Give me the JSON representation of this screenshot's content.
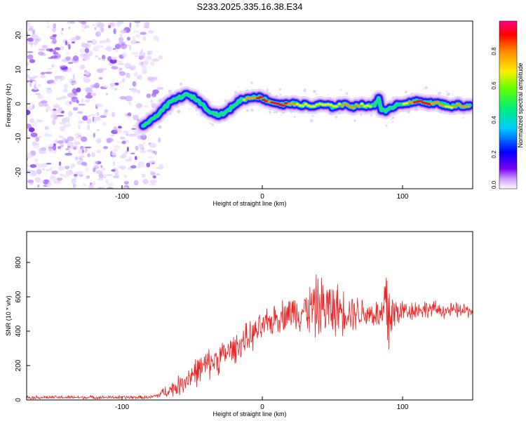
{
  "title": "S233.2025.335.16.38.E34",
  "chart_data": [
    {
      "type": "heatmap",
      "xlabel": "Height of straight line (km)",
      "ylabel": "Frequency (Hz)",
      "xlim": [
        -168,
        150
      ],
      "ylim": [
        -25,
        25
      ],
      "xticks": [
        -100,
        0,
        100
      ],
      "xtick_labels": [
        "-100",
        "0",
        "100"
      ],
      "yticks": [
        -20,
        -10,
        0,
        10,
        20
      ],
      "ytick_labels": [
        "-20",
        "-10",
        "0",
        "10",
        "20"
      ],
      "colorbar": {
        "label": "Normalized spectral amplitude",
        "range": [
          0,
          1
        ],
        "ticks": [
          0,
          0.2,
          0.4,
          0.6,
          0.8
        ],
        "tick_labels": [
          "0.0",
          "0.2",
          "0.4",
          "0.6",
          "0.8"
        ],
        "colors": [
          "#ffffff",
          "#cc99ff",
          "#7700ee",
          "#0000ff",
          "#00ccff",
          "#00ee77",
          "#66ff00",
          "#ffee00",
          "#ff8800",
          "#ff0000",
          "#ff0088"
        ]
      },
      "noise_region_x": [
        -168,
        -78
      ],
      "ridge": {
        "x": [
          -85,
          -80,
          -75,
          -70,
          -65,
          -60,
          -55,
          -50,
          -45,
          -40,
          -35,
          -30,
          -25,
          -20,
          -15,
          -10,
          -5,
          0,
          5,
          10,
          15,
          20,
          25,
          30,
          35,
          40,
          45,
          50,
          55,
          60,
          65,
          70,
          75,
          80,
          83,
          85,
          88,
          90,
          95,
          100,
          105,
          110,
          115,
          120,
          125,
          130,
          135,
          140,
          145,
          148
        ],
        "freq": [
          -6,
          -5,
          -3,
          -1,
          1,
          2,
          3,
          2.5,
          1,
          -1,
          -2.5,
          -3,
          -2,
          0,
          1.5,
          2,
          2.5,
          2,
          1,
          0.5,
          0,
          0.5,
          0,
          0,
          -0.5,
          0,
          0,
          -0.5,
          0,
          0,
          -0.5,
          0,
          -0.5,
          0,
          2,
          -1.5,
          -2,
          -1.5,
          0,
          0.5,
          0.5,
          1,
          1,
          0.5,
          0.5,
          0,
          -0.5,
          0,
          -0.5,
          0
        ],
        "amplitude": [
          0.3,
          0.35,
          0.4,
          0.45,
          0.5,
          0.5,
          0.55,
          0.5,
          0.5,
          0.45,
          0.5,
          0.45,
          0.5,
          0.55,
          0.6,
          0.75,
          0.8,
          0.85,
          0.8,
          0.9,
          0.85,
          0.75,
          0.7,
          0.7,
          0.7,
          0.65,
          0.7,
          0.7,
          0.7,
          0.75,
          0.8,
          0.7,
          0.65,
          0.55,
          0.5,
          0.4,
          0.4,
          0.45,
          0.55,
          0.6,
          0.75,
          0.85,
          0.85,
          0.8,
          0.75,
          0.7,
          0.7,
          0.75,
          0.75,
          0.7
        ]
      }
    },
    {
      "type": "line",
      "xlabel": "Height of straight line (km)",
      "ylabel": "SNR (10 * v/v)",
      "xlim": [
        -168,
        150
      ],
      "ylim": [
        0,
        980
      ],
      "xticks": [
        -100,
        0,
        100
      ],
      "xtick_labels": [
        "-100",
        "0",
        "100"
      ],
      "yticks": [
        0,
        200,
        400,
        600,
        800
      ],
      "ytick_labels": [
        "0",
        "200",
        "400",
        "600",
        "800"
      ],
      "series": [
        {
          "name": "SNR",
          "color": "#ee2222",
          "envelope": {
            "x": [
              -168,
              -80,
              -75,
              -70,
              -60,
              -50,
              -40,
              -30,
              -20,
              -10,
              0,
              10,
              20,
              30,
              40,
              50,
              60,
              70,
              80,
              85,
              88,
              90,
              92,
              95,
              100,
              110,
              120,
              130,
              140,
              150
            ],
            "mean": [
              15,
              15,
              25,
              45,
              80,
              150,
              200,
              250,
              300,
              360,
              420,
              480,
              510,
              520,
              540,
              530,
              520,
              510,
              500,
              480,
              520,
              500,
              500,
              510,
              520,
              525,
              530,
              520,
              520,
              520
            ],
            "spread": [
              12,
              12,
              20,
              40,
              70,
              100,
              110,
              110,
              100,
              110,
              100,
              110,
              120,
              150,
              230,
              200,
              150,
              120,
              100,
              150,
              480,
              400,
              250,
              120,
              80,
              70,
              60,
              55,
              55,
              50
            ]
          }
        }
      ]
    }
  ]
}
